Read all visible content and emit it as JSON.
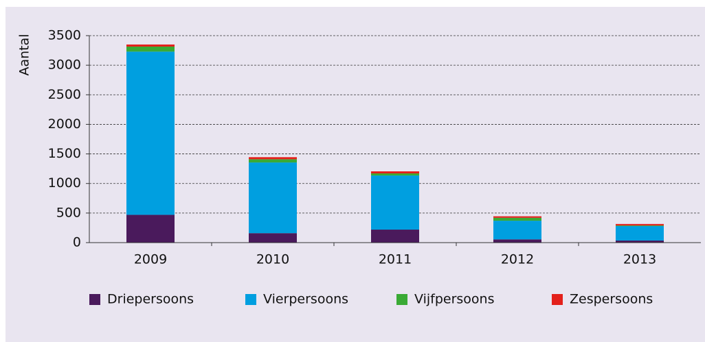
{
  "chart_data": {
    "type": "stacked_bar",
    "y_label": "Aantal",
    "categories": [
      "2009",
      "2010",
      "2011",
      "2012",
      "2013"
    ],
    "series": [
      {
        "name": "Driepersoons",
        "color": "#4a1a5c",
        "values": [
          470,
          160,
          220,
          55,
          35
        ]
      },
      {
        "name": "Vierpersoons",
        "color": "#009fe0",
        "values": [
          2760,
          1195,
          915,
          315,
          245
        ]
      },
      {
        "name": "Vijfpersoons",
        "color": "#3aaa35",
        "values": [
          85,
          55,
          35,
          50,
          10
        ]
      },
      {
        "name": "Zespersoons",
        "color": "#e3201b",
        "values": [
          35,
          35,
          35,
          25,
          25
        ]
      }
    ],
    "ylim": [
      0,
      3500
    ],
    "yticks": [
      0,
      500,
      1000,
      1500,
      2000,
      2500,
      3000,
      3500
    ],
    "grid": true,
    "legend": "bottom"
  }
}
